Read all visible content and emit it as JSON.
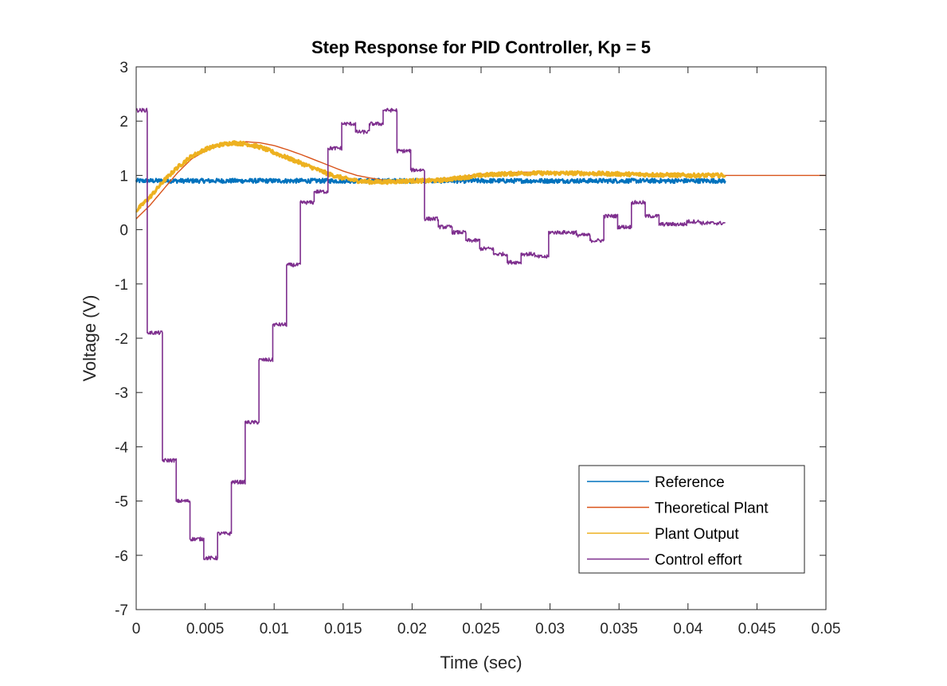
{
  "chart_data": {
    "type": "line",
    "title": "Step Response for PID Controller, Kp = 5",
    "xlabel": "Time (sec)",
    "ylabel": "Voltage (V)",
    "xlim": [
      0,
      0.05
    ],
    "ylim": [
      -7,
      3
    ],
    "xticks": [
      0,
      0.005,
      0.01,
      0.015,
      0.02,
      0.025,
      0.03,
      0.035,
      0.04,
      0.045,
      0.05
    ],
    "xtick_labels": [
      "0",
      "0.005",
      "0.01",
      "0.015",
      "0.02",
      "0.025",
      "0.03",
      "0.035",
      "0.04",
      "0.045",
      "0.05"
    ],
    "yticks": [
      -7,
      -6,
      -5,
      -4,
      -3,
      -2,
      -1,
      0,
      1,
      2,
      3
    ],
    "ytick_labels": [
      "-7",
      "-6",
      "-5",
      "-4",
      "-3",
      "-2",
      "-1",
      "0",
      "1",
      "2",
      "3"
    ],
    "grid": false,
    "legend_position": "bottom-right",
    "series": [
      {
        "name": "Reference",
        "color": "#0072BD",
        "noise": 0.04,
        "x": [
          0,
          0.0427
        ],
        "y": [
          0.9,
          0.9
        ]
      },
      {
        "name": "Theoretical Plant",
        "color": "#D95319",
        "noise": 0,
        "x": [
          0,
          0.001,
          0.002,
          0.003,
          0.004,
          0.005,
          0.006,
          0.007,
          0.008,
          0.009,
          0.01,
          0.011,
          0.012,
          0.013,
          0.014,
          0.015,
          0.016,
          0.017,
          0.018,
          0.019,
          0.02,
          0.021,
          0.022,
          0.023,
          0.024,
          0.025,
          0.026,
          0.027,
          0.028,
          0.029,
          0.03,
          0.032,
          0.034,
          0.036,
          0.038,
          0.04,
          0.042,
          0.044,
          0.046,
          0.048,
          0.05
        ],
        "y": [
          0.2,
          0.45,
          0.75,
          1.05,
          1.3,
          1.45,
          1.55,
          1.6,
          1.62,
          1.6,
          1.55,
          1.47,
          1.38,
          1.28,
          1.18,
          1.08,
          1.0,
          0.95,
          0.91,
          0.9,
          0.9,
          0.91,
          0.93,
          0.96,
          0.99,
          1.02,
          1.04,
          1.05,
          1.06,
          1.06,
          1.06,
          1.05,
          1.04,
          1.03,
          1.02,
          1.01,
          1.0,
          1.0,
          1.0,
          1.0,
          1.0
        ]
      },
      {
        "name": "Plant Output",
        "color": "#EDB120",
        "noise": 0.035,
        "x": [
          0,
          0.001,
          0.002,
          0.003,
          0.004,
          0.005,
          0.006,
          0.007,
          0.008,
          0.009,
          0.01,
          0.011,
          0.012,
          0.013,
          0.014,
          0.015,
          0.016,
          0.017,
          0.018,
          0.019,
          0.02,
          0.021,
          0.022,
          0.023,
          0.024,
          0.025,
          0.026,
          0.027,
          0.028,
          0.029,
          0.03,
          0.032,
          0.034,
          0.036,
          0.038,
          0.04,
          0.0427
        ],
        "y": [
          0.35,
          0.6,
          0.9,
          1.15,
          1.35,
          1.48,
          1.56,
          1.6,
          1.58,
          1.52,
          1.42,
          1.32,
          1.22,
          1.12,
          1.02,
          0.95,
          0.9,
          0.88,
          0.88,
          0.89,
          0.9,
          0.9,
          0.91,
          0.94,
          0.97,
          1.0,
          1.02,
          1.03,
          1.04,
          1.04,
          1.04,
          1.04,
          1.03,
          1.02,
          1.01,
          1.0,
          1.0
        ]
      },
      {
        "name": "Control effort",
        "color": "#7E2F8E",
        "noise": 0.035,
        "x": [
          0,
          0.0008,
          0.0008,
          0.0019,
          0.0019,
          0.0029,
          0.0029,
          0.0039,
          0.0039,
          0.0049,
          0.0049,
          0.0059,
          0.0059,
          0.0069,
          0.0069,
          0.0079,
          0.0079,
          0.0089,
          0.0089,
          0.0099,
          0.0099,
          0.0109,
          0.0109,
          0.0119,
          0.0119,
          0.0129,
          0.0129,
          0.0139,
          0.0139,
          0.0149,
          0.0149,
          0.0159,
          0.0159,
          0.0169,
          0.0169,
          0.0179,
          0.0179,
          0.0189,
          0.0189,
          0.0199,
          0.0199,
          0.0209,
          0.0209,
          0.0219,
          0.0219,
          0.0229,
          0.0229,
          0.0239,
          0.0239,
          0.0249,
          0.0249,
          0.0259,
          0.0259,
          0.0269,
          0.0269,
          0.0279,
          0.0279,
          0.0289,
          0.0289,
          0.0299,
          0.0299,
          0.0319,
          0.0319,
          0.0329,
          0.0329,
          0.0339,
          0.0339,
          0.0349,
          0.0349,
          0.0359,
          0.0359,
          0.0369,
          0.0369,
          0.0379,
          0.0379,
          0.0389,
          0.0389,
          0.0399,
          0.0399,
          0.0409,
          0.0409,
          0.0427
        ],
        "y": [
          2.2,
          2.2,
          -1.9,
          -1.9,
          -4.25,
          -4.25,
          -5.0,
          -5.0,
          -5.7,
          -5.7,
          -6.05,
          -6.05,
          -5.6,
          -5.6,
          -4.65,
          -4.65,
          -3.55,
          -3.55,
          -2.4,
          -2.4,
          -1.75,
          -1.75,
          -0.65,
          -0.65,
          0.5,
          0.5,
          0.7,
          0.7,
          1.5,
          1.5,
          1.95,
          1.95,
          1.8,
          1.8,
          1.95,
          1.95,
          2.2,
          2.2,
          1.45,
          1.45,
          1.1,
          1.1,
          0.2,
          0.2,
          0.05,
          0.05,
          -0.05,
          -0.05,
          -0.2,
          -0.2,
          -0.35,
          -0.35,
          -0.45,
          -0.45,
          -0.6,
          -0.6,
          -0.45,
          -0.45,
          -0.5,
          -0.5,
          -0.05,
          -0.05,
          -0.1,
          -0.1,
          -0.2,
          -0.2,
          0.25,
          0.25,
          0.05,
          0.05,
          0.5,
          0.5,
          0.25,
          0.25,
          0.1,
          0.1,
          0.1,
          0.1,
          0.15,
          0.15,
          0.12,
          0.12
        ]
      }
    ]
  }
}
